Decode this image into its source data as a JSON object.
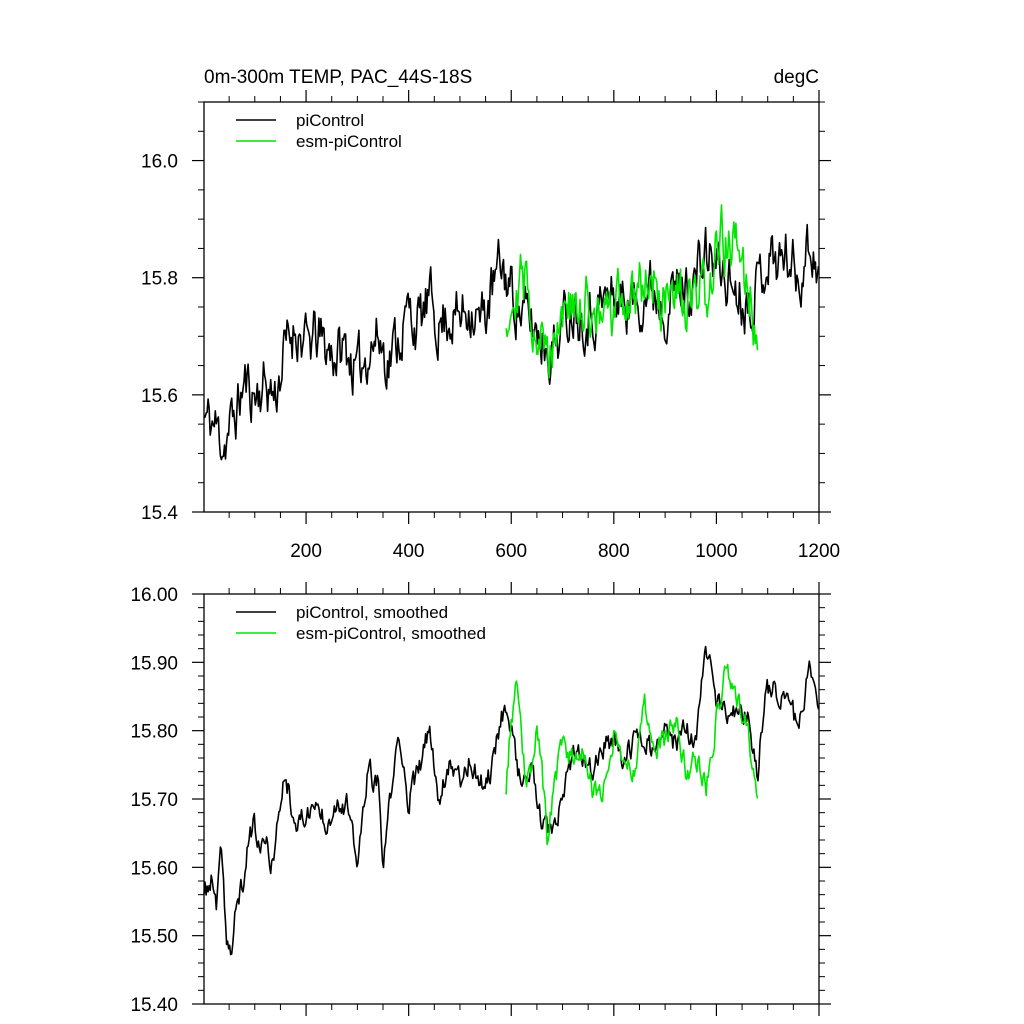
{
  "chart_data": [
    {
      "type": "line",
      "title": "0m-300m TEMP, PAC_44S-18S",
      "units": "degC",
      "xlabel": "",
      "ylabel": "",
      "xlim": [
        1,
        1200
      ],
      "ylim": [
        15.4,
        16.1
      ],
      "xticks": [
        200,
        400,
        600,
        800,
        1000,
        1200
      ],
      "xtick_labels": [
        "200",
        "400",
        "600",
        "800",
        "1000",
        "1200"
      ],
      "yticks": [
        15.4,
        15.6,
        15.8,
        16.0
      ],
      "ytick_labels": [
        "15.4",
        "15.6",
        "15.8",
        "16.0"
      ],
      "legend_position": "top-left",
      "series": [
        {
          "name": "piControl",
          "color": "#000000",
          "x_start": 1,
          "x_end": 1200,
          "anchors": [
            [
              1,
              15.56
            ],
            [
              20,
              15.55
            ],
            [
              40,
              15.52
            ],
            [
              60,
              15.56
            ],
            [
              80,
              15.62
            ],
            [
              100,
              15.6
            ],
            [
              120,
              15.62
            ],
            [
              140,
              15.6
            ],
            [
              160,
              15.68
            ],
            [
              180,
              15.72
            ],
            [
              200,
              15.68
            ],
            [
              220,
              15.7
            ],
            [
              240,
              15.68
            ],
            [
              260,
              15.67
            ],
            [
              280,
              15.68
            ],
            [
              300,
              15.63
            ],
            [
              320,
              15.68
            ],
            [
              340,
              15.7
            ],
            [
              360,
              15.66
            ],
            [
              380,
              15.7
            ],
            [
              400,
              15.74
            ],
            [
              420,
              15.72
            ],
            [
              440,
              15.76
            ],
            [
              460,
              15.72
            ],
            [
              480,
              15.74
            ],
            [
              500,
              15.73
            ],
            [
              520,
              15.76
            ],
            [
              540,
              15.72
            ],
            [
              560,
              15.77
            ],
            [
              580,
              15.82
            ],
            [
              600,
              15.78
            ],
            [
              620,
              15.74
            ],
            [
              640,
              15.72
            ],
            [
              660,
              15.7
            ],
            [
              680,
              15.68
            ],
            [
              700,
              15.72
            ],
            [
              720,
              15.76
            ],
            [
              740,
              15.74
            ],
            [
              760,
              15.74
            ],
            [
              780,
              15.76
            ],
            [
              800,
              15.77
            ],
            [
              820,
              15.76
            ],
            [
              840,
              15.76
            ],
            [
              860,
              15.78
            ],
            [
              880,
              15.78
            ],
            [
              900,
              15.76
            ],
            [
              920,
              15.78
            ],
            [
              940,
              15.78
            ],
            [
              960,
              15.8
            ],
            [
              980,
              15.84
            ],
            [
              1000,
              15.82
            ],
            [
              1020,
              15.8
            ],
            [
              1040,
              15.78
            ],
            [
              1060,
              15.76
            ],
            [
              1080,
              15.79
            ],
            [
              1100,
              15.84
            ],
            [
              1120,
              15.83
            ],
            [
              1140,
              15.84
            ],
            [
              1160,
              15.8
            ],
            [
              1180,
              15.86
            ],
            [
              1200,
              15.82
            ]
          ],
          "noise_amplitude": 0.06,
          "seed": 11
        },
        {
          "name": "esm-piControl",
          "color": "#00e600",
          "x_start": 590,
          "x_end": 1080,
          "anchors": [
            [
              590,
              15.74
            ],
            [
              610,
              15.8
            ],
            [
              630,
              15.78
            ],
            [
              650,
              15.72
            ],
            [
              670,
              15.66
            ],
            [
              690,
              15.74
            ],
            [
              710,
              15.76
            ],
            [
              730,
              15.72
            ],
            [
              750,
              15.76
            ],
            [
              770,
              15.74
            ],
            [
              790,
              15.72
            ],
            [
              810,
              15.76
            ],
            [
              830,
              15.76
            ],
            [
              850,
              15.8
            ],
            [
              870,
              15.8
            ],
            [
              890,
              15.76
            ],
            [
              910,
              15.74
            ],
            [
              930,
              15.76
            ],
            [
              950,
              15.74
            ],
            [
              970,
              15.76
            ],
            [
              990,
              15.8
            ],
            [
              1010,
              15.86
            ],
            [
              1030,
              15.86
            ],
            [
              1050,
              15.82
            ],
            [
              1070,
              15.74
            ],
            [
              1080,
              15.72
            ]
          ],
          "noise_amplitude": 0.065,
          "seed": 29
        }
      ]
    },
    {
      "type": "line",
      "title": "",
      "xlabel": "",
      "ylabel": "",
      "xlim": [
        1,
        1200
      ],
      "ylim": [
        15.4,
        16.0
      ],
      "xticks": [
        200,
        400,
        600,
        800,
        1000,
        1200
      ],
      "xtick_labels": [],
      "yticks": [
        15.4,
        15.5,
        15.6,
        15.7,
        15.8,
        15.9,
        16.0
      ],
      "ytick_labels": [
        "15.40",
        "15.50",
        "15.60",
        "15.70",
        "15.80",
        "15.90",
        "16.00"
      ],
      "legend_position": "top-left",
      "series": [
        {
          "name": "piControl, smoothed",
          "color": "#000000",
          "x_start": 1,
          "x_end": 1200,
          "anchors": [
            [
              1,
              15.56
            ],
            [
              15,
              15.58
            ],
            [
              25,
              15.54
            ],
            [
              35,
              15.62
            ],
            [
              45,
              15.5
            ],
            [
              55,
              15.47
            ],
            [
              65,
              15.55
            ],
            [
              80,
              15.58
            ],
            [
              90,
              15.66
            ],
            [
              100,
              15.66
            ],
            [
              110,
              15.62
            ],
            [
              120,
              15.64
            ],
            [
              130,
              15.61
            ],
            [
              140,
              15.62
            ],
            [
              150,
              15.7
            ],
            [
              160,
              15.74
            ],
            [
              170,
              15.7
            ],
            [
              185,
              15.66
            ],
            [
              200,
              15.68
            ],
            [
              220,
              15.69
            ],
            [
              240,
              15.67
            ],
            [
              260,
              15.7
            ],
            [
              280,
              15.69
            ],
            [
              300,
              15.6
            ],
            [
              320,
              15.74
            ],
            [
              340,
              15.72
            ],
            [
              350,
              15.6
            ],
            [
              370,
              15.74
            ],
            [
              380,
              15.78
            ],
            [
              400,
              15.7
            ],
            [
              420,
              15.74
            ],
            [
              440,
              15.8
            ],
            [
              460,
              15.7
            ],
            [
              480,
              15.76
            ],
            [
              500,
              15.73
            ],
            [
              520,
              15.76
            ],
            [
              540,
              15.72
            ],
            [
              560,
              15.74
            ],
            [
              580,
              15.82
            ],
            [
              590,
              15.84
            ],
            [
              600,
              15.8
            ],
            [
              620,
              15.72
            ],
            [
              640,
              15.74
            ],
            [
              660,
              15.66
            ],
            [
              680,
              15.64
            ],
            [
              700,
              15.7
            ],
            [
              720,
              15.76
            ],
            [
              740,
              15.76
            ],
            [
              760,
              15.74
            ],
            [
              780,
              15.78
            ],
            [
              800,
              15.78
            ],
            [
              820,
              15.76
            ],
            [
              840,
              15.78
            ],
            [
              860,
              15.8
            ],
            [
              880,
              15.76
            ],
            [
              900,
              15.8
            ],
            [
              920,
              15.78
            ],
            [
              940,
              15.8
            ],
            [
              960,
              15.78
            ],
            [
              980,
              15.92
            ],
            [
              1000,
              15.85
            ],
            [
              1020,
              15.82
            ],
            [
              1040,
              15.82
            ],
            [
              1060,
              15.82
            ],
            [
              1080,
              15.74
            ],
            [
              1090,
              15.82
            ],
            [
              1100,
              15.86
            ],
            [
              1120,
              15.86
            ],
            [
              1140,
              15.84
            ],
            [
              1160,
              15.8
            ],
            [
              1180,
              15.9
            ],
            [
              1190,
              15.86
            ],
            [
              1200,
              15.8
            ]
          ],
          "noise_amplitude": 0.022,
          "seed": 37
        },
        {
          "name": "esm-piControl, smoothed",
          "color": "#00e600",
          "x_start": 590,
          "x_end": 1080,
          "anchors": [
            [
              590,
              15.72
            ],
            [
              600,
              15.82
            ],
            [
              610,
              15.86
            ],
            [
              620,
              15.78
            ],
            [
              630,
              15.72
            ],
            [
              640,
              15.74
            ],
            [
              650,
              15.82
            ],
            [
              660,
              15.74
            ],
            [
              670,
              15.64
            ],
            [
              680,
              15.7
            ],
            [
              700,
              15.78
            ],
            [
              720,
              15.76
            ],
            [
              740,
              15.78
            ],
            [
              760,
              15.7
            ],
            [
              780,
              15.72
            ],
            [
              800,
              15.8
            ],
            [
              820,
              15.76
            ],
            [
              840,
              15.74
            ],
            [
              850,
              15.8
            ],
            [
              860,
              15.84
            ],
            [
              880,
              15.78
            ],
            [
              900,
              15.78
            ],
            [
              920,
              15.82
            ],
            [
              940,
              15.74
            ],
            [
              960,
              15.76
            ],
            [
              980,
              15.72
            ],
            [
              1000,
              15.82
            ],
            [
              1010,
              15.86
            ],
            [
              1020,
              15.9
            ],
            [
              1040,
              15.84
            ],
            [
              1060,
              15.82
            ],
            [
              1070,
              15.74
            ],
            [
              1080,
              15.72
            ]
          ],
          "noise_amplitude": 0.022,
          "seed": 53
        }
      ]
    }
  ]
}
